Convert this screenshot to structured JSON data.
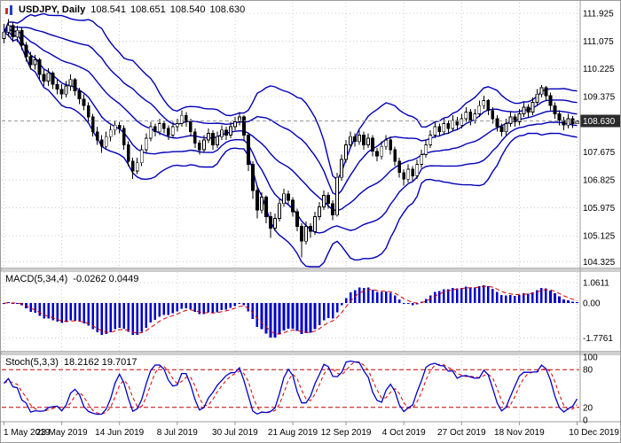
{
  "chart_data": {
    "type": "candlestick",
    "title": "USDJPY, Daily",
    "symbol": "USDJPY",
    "timeframe": "Daily",
    "ohlc_display": {
      "open": "108.541",
      "high": "108.651",
      "low": "108.540",
      "close": "108.630"
    },
    "last_price": "108.630",
    "price_axis": {
      "ticks": [
        "111.925",
        "111.075",
        "110.225",
        "109.375",
        "107.675",
        "106.825",
        "105.975",
        "105.125",
        "104.325"
      ],
      "range": [
        104.17,
        112.25
      ]
    },
    "x_axis": {
      "tick_labels": [
        "1 May 2019",
        "23 May 2019",
        "14 Jun 2019",
        "8 Jul 2019",
        "30 Jul 2019",
        "21 Aug 2019",
        "12 Sep 2019",
        "4 Oct 2019",
        "27 Oct 2019",
        "18 Nov 2019",
        "10 Dec 2019"
      ]
    },
    "overlays": {
      "bollinger": [
        {
          "period": 20,
          "deviation": 2
        },
        {
          "period": 20,
          "deviation": 1
        }
      ]
    },
    "indicators": [
      {
        "id": "macd",
        "label": "MACD(5,34,4)",
        "params": [
          5,
          34,
          4
        ],
        "display_values": "-0.0262 0.0449",
        "axis_ticks": [
          "1.0611",
          "0.00",
          "-1.7761"
        ],
        "range": [
          -2.35,
          1.55
        ]
      },
      {
        "id": "stoch",
        "label": "Stoch(5,3,3)",
        "params": [
          5,
          3,
          3
        ],
        "display_values": "18.2162 19.7017",
        "axis_ticks": [
          "100",
          "80",
          "20",
          "0"
        ],
        "levels": [
          20,
          80
        ]
      }
    ],
    "colors": {
      "band": "#0000b8",
      "candle": "#000000",
      "bull_fill": "#ffffff",
      "bear_fill": "#000000",
      "grid": "#cdcdcd",
      "macd_hist": "#0000c8",
      "signal": "#d40000",
      "stoch_main": "#0000c8",
      "stoch_signal": "#d40000",
      "level": "#c00000",
      "price_line": "#999999",
      "tag_bg": "#2b2b2b",
      "tag_text": "#ffffff",
      "separator": "#cfcfcf",
      "frame": "#9b9b9b"
    },
    "candles": [
      [
        111.15,
        111.6,
        111.0,
        111.35
      ],
      [
        111.35,
        111.75,
        111.2,
        111.55
      ],
      [
        111.55,
        111.65,
        111.05,
        111.2
      ],
      [
        111.2,
        111.55,
        111.05,
        111.4
      ],
      [
        111.4,
        111.5,
        110.8,
        110.95
      ],
      [
        110.95,
        111.05,
        110.45,
        110.6
      ],
      [
        110.6,
        110.75,
        110.2,
        110.35
      ],
      [
        110.35,
        110.65,
        110.2,
        110.5
      ],
      [
        110.5,
        110.55,
        109.9,
        110.05
      ],
      [
        110.05,
        110.2,
        109.7,
        109.85
      ],
      [
        109.85,
        110.25,
        109.7,
        110.1
      ],
      [
        110.1,
        110.15,
        109.6,
        109.75
      ],
      [
        109.75,
        109.9,
        109.45,
        109.6
      ],
      [
        109.6,
        109.75,
        109.3,
        109.45
      ],
      [
        109.45,
        109.85,
        109.35,
        109.7
      ],
      [
        109.7,
        110.05,
        109.55,
        109.9
      ],
      [
        109.9,
        109.95,
        109.4,
        109.55
      ],
      [
        109.55,
        109.65,
        109.15,
        109.3
      ],
      [
        109.3,
        109.45,
        108.95,
        109.1
      ],
      [
        109.1,
        109.2,
        108.6,
        108.75
      ],
      [
        108.75,
        108.85,
        108.15,
        108.3
      ],
      [
        108.3,
        108.45,
        107.9,
        108.05
      ],
      [
        108.05,
        108.2,
        107.65,
        107.85
      ],
      [
        107.85,
        108.3,
        107.75,
        108.15
      ],
      [
        108.15,
        108.5,
        108.0,
        108.35
      ],
      [
        108.35,
        108.65,
        108.2,
        108.5
      ],
      [
        108.5,
        108.6,
        108.25,
        108.4
      ],
      [
        108.4,
        108.5,
        107.75,
        107.9
      ],
      [
        107.9,
        108.0,
        107.25,
        107.4
      ],
      [
        107.4,
        107.5,
        106.85,
        107.1
      ],
      [
        107.1,
        107.5,
        107.0,
        107.35
      ],
      [
        107.35,
        107.9,
        107.25,
        107.75
      ],
      [
        107.75,
        108.25,
        107.65,
        108.1
      ],
      [
        108.1,
        108.6,
        108.0,
        108.45
      ],
      [
        108.45,
        108.55,
        108.15,
        108.3
      ],
      [
        108.3,
        108.7,
        108.2,
        108.55
      ],
      [
        108.55,
        108.65,
        108.25,
        108.4
      ],
      [
        108.4,
        108.5,
        108.05,
        108.2
      ],
      [
        108.2,
        108.6,
        108.1,
        108.45
      ],
      [
        108.45,
        108.7,
        108.3,
        108.55
      ],
      [
        108.55,
        108.95,
        108.45,
        108.8
      ],
      [
        108.8,
        108.9,
        108.45,
        108.6
      ],
      [
        108.6,
        108.7,
        108.15,
        108.3
      ],
      [
        108.3,
        108.4,
        107.8,
        107.95
      ],
      [
        107.95,
        108.05,
        107.6,
        107.75
      ],
      [
        107.75,
        108.2,
        107.65,
        108.05
      ],
      [
        108.05,
        108.4,
        107.95,
        108.25
      ],
      [
        108.25,
        108.35,
        107.75,
        107.9
      ],
      [
        107.9,
        108.3,
        107.8,
        108.15
      ],
      [
        108.15,
        108.5,
        108.05,
        108.35
      ],
      [
        108.35,
        108.45,
        108.05,
        108.2
      ],
      [
        108.2,
        108.6,
        108.1,
        108.45
      ],
      [
        108.45,
        108.75,
        108.35,
        108.6
      ],
      [
        108.6,
        108.9,
        108.5,
        108.75
      ],
      [
        108.75,
        108.8,
        108.0,
        108.2
      ],
      [
        108.2,
        108.25,
        107.1,
        107.3
      ],
      [
        107.3,
        107.4,
        106.25,
        106.5
      ],
      [
        106.5,
        106.65,
        105.65,
        105.9
      ],
      [
        105.9,
        106.45,
        105.8,
        106.3
      ],
      [
        106.3,
        106.35,
        105.5,
        105.7
      ],
      [
        105.7,
        105.85,
        105.05,
        105.35
      ],
      [
        105.35,
        105.8,
        105.25,
        105.65
      ],
      [
        105.65,
        106.25,
        105.55,
        106.1
      ],
      [
        106.1,
        106.55,
        106.0,
        106.4
      ],
      [
        106.4,
        106.5,
        106.05,
        106.2
      ],
      [
        106.2,
        106.3,
        105.7,
        105.85
      ],
      [
        105.85,
        105.95,
        105.25,
        105.4
      ],
      [
        105.4,
        105.5,
        104.45,
        104.95
      ],
      [
        104.95,
        105.55,
        104.85,
        105.4
      ],
      [
        105.4,
        105.5,
        105.05,
        105.25
      ],
      [
        105.25,
        105.85,
        105.15,
        105.7
      ],
      [
        105.7,
        106.15,
        105.6,
        106.0
      ],
      [
        106.0,
        106.5,
        105.9,
        106.35
      ],
      [
        106.35,
        106.45,
        105.95,
        106.1
      ],
      [
        106.1,
        106.2,
        105.6,
        105.75
      ],
      [
        105.75,
        107.05,
        105.7,
        106.9
      ],
      [
        106.9,
        107.6,
        106.8,
        107.45
      ],
      [
        107.45,
        108.05,
        107.35,
        107.9
      ],
      [
        107.9,
        108.3,
        107.8,
        108.15
      ],
      [
        108.15,
        108.25,
        107.85,
        108.0
      ],
      [
        108.0,
        108.35,
        107.9,
        108.2
      ],
      [
        108.2,
        108.3,
        107.75,
        107.9
      ],
      [
        107.9,
        108.25,
        107.8,
        108.1
      ],
      [
        108.1,
        108.2,
        107.55,
        107.7
      ],
      [
        107.7,
        107.8,
        107.4,
        107.55
      ],
      [
        107.55,
        108.0,
        107.45,
        107.85
      ],
      [
        107.85,
        108.2,
        107.75,
        108.05
      ],
      [
        108.05,
        108.15,
        107.6,
        107.75
      ],
      [
        107.75,
        107.85,
        107.25,
        107.4
      ],
      [
        107.4,
        107.5,
        106.9,
        107.05
      ],
      [
        107.05,
        107.15,
        106.65,
        106.85
      ],
      [
        106.85,
        107.3,
        106.75,
        107.15
      ],
      [
        107.15,
        107.25,
        106.8,
        106.95
      ],
      [
        106.95,
        107.45,
        106.85,
        107.3
      ],
      [
        107.3,
        107.75,
        107.2,
        107.6
      ],
      [
        107.6,
        108.05,
        107.5,
        107.9
      ],
      [
        107.9,
        108.35,
        107.8,
        108.2
      ],
      [
        108.2,
        108.6,
        108.1,
        108.45
      ],
      [
        108.45,
        108.55,
        108.15,
        108.3
      ],
      [
        108.3,
        108.7,
        108.2,
        108.55
      ],
      [
        108.55,
        108.65,
        108.25,
        108.4
      ],
      [
        108.4,
        108.8,
        108.3,
        108.65
      ],
      [
        108.65,
        108.75,
        108.35,
        108.5
      ],
      [
        108.5,
        108.85,
        108.4,
        108.7
      ],
      [
        108.7,
        109.05,
        108.6,
        108.9
      ],
      [
        108.9,
        109.0,
        108.5,
        108.65
      ],
      [
        108.65,
        109.0,
        108.55,
        108.85
      ],
      [
        108.85,
        109.25,
        108.75,
        109.1
      ],
      [
        109.1,
        109.4,
        109.0,
        109.25
      ],
      [
        109.25,
        109.3,
        108.8,
        108.95
      ],
      [
        108.95,
        109.05,
        108.55,
        108.7
      ],
      [
        108.7,
        108.8,
        108.3,
        108.45
      ],
      [
        108.45,
        108.55,
        108.15,
        108.3
      ],
      [
        108.3,
        108.7,
        108.2,
        108.55
      ],
      [
        108.55,
        108.9,
        108.45,
        108.75
      ],
      [
        108.75,
        108.85,
        108.45,
        108.6
      ],
      [
        108.6,
        109.0,
        108.5,
        108.85
      ],
      [
        108.85,
        109.2,
        108.75,
        109.05
      ],
      [
        109.05,
        109.15,
        108.75,
        108.9
      ],
      [
        108.9,
        109.35,
        108.8,
        109.2
      ],
      [
        109.2,
        109.6,
        109.1,
        109.45
      ],
      [
        109.45,
        109.73,
        109.35,
        109.65
      ],
      [
        109.65,
        109.7,
        109.25,
        109.4
      ],
      [
        109.4,
        109.5,
        108.95,
        109.1
      ],
      [
        109.1,
        109.2,
        108.7,
        108.85
      ],
      [
        108.85,
        108.95,
        108.5,
        108.65
      ],
      [
        108.65,
        108.75,
        108.35,
        108.5
      ],
      [
        108.5,
        108.85,
        108.4,
        108.7
      ],
      [
        108.7,
        108.78,
        108.42,
        108.55
      ],
      [
        108.54,
        108.65,
        108.54,
        108.63
      ]
    ]
  }
}
